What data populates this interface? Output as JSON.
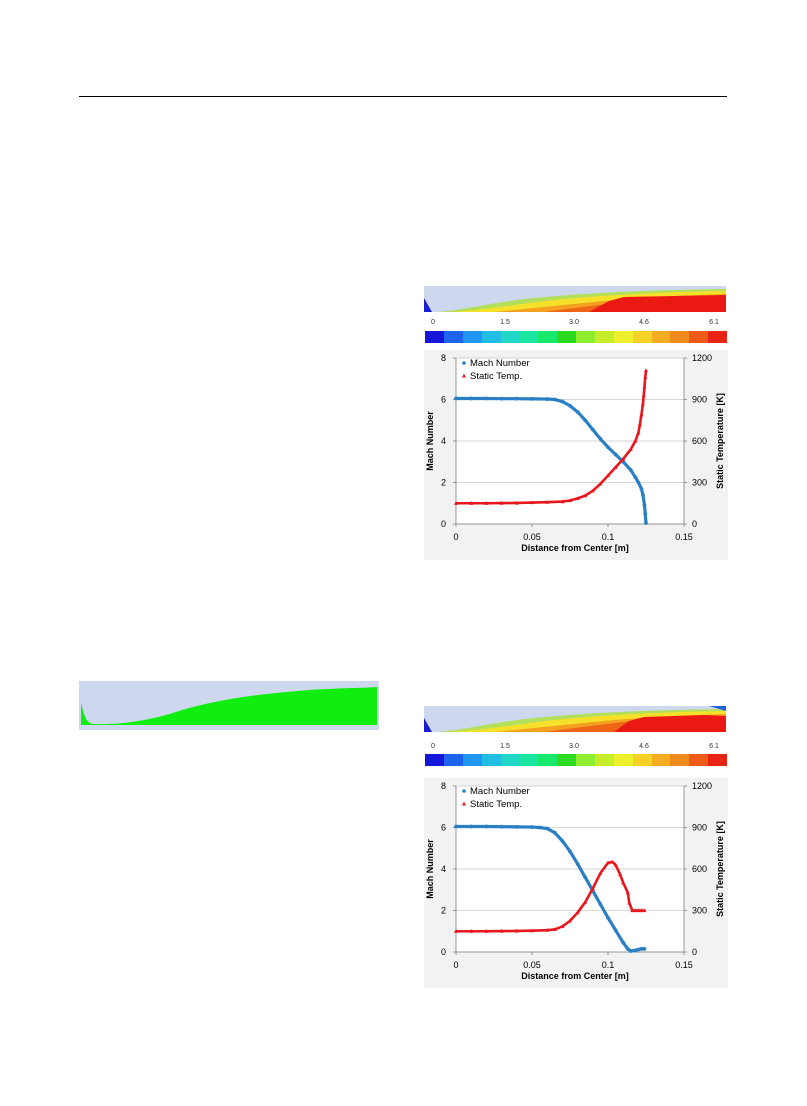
{
  "colors": {
    "mach": "#2a7fc4",
    "temp": "#e8161d",
    "panel_bg": "#cdd8ef",
    "green": "#10ee10",
    "grid": "#c8c8c8",
    "colormap": [
      "#1616d8",
      "#1d64ee",
      "#2196f3",
      "#22bde3",
      "#21d7c8",
      "#1ae6a0",
      "#19e96a",
      "#2cdb21",
      "#8ded2e",
      "#c6ed2a",
      "#eef02c",
      "#f5d225",
      "#f4ad20",
      "#f18a1c",
      "#ee5b18",
      "#ea2414"
    ]
  },
  "colorbar": {
    "ticks": [
      "0",
      "1.5",
      "3.0",
      "4.6",
      "6.1"
    ]
  },
  "chart_data": [
    {
      "type": "scatter",
      "title": "",
      "xlabel": "Distance from Center [m]",
      "ylabel": "Mach Number",
      "y2label": "Static Temperature [K]",
      "xlim": [
        0,
        0.15
      ],
      "ylim": [
        0,
        8
      ],
      "y2lim": [
        0,
        1200
      ],
      "xticks": [
        "0",
        "0.05",
        "0.1",
        "0.15"
      ],
      "yticks": [
        "0",
        "2",
        "4",
        "6",
        "8"
      ],
      "y2ticks": [
        "0",
        "300",
        "600",
        "900",
        "1200"
      ],
      "grid": "horizontal",
      "legend_position": "top-left",
      "series": [
        {
          "name": "Mach Number",
          "axis": "left",
          "marker": "circle",
          "x": [
            0,
            0.01,
            0.02,
            0.03,
            0.04,
            0.05,
            0.06,
            0.065,
            0.07,
            0.075,
            0.08,
            0.085,
            0.09,
            0.095,
            0.1,
            0.105,
            0.11,
            0.115,
            0.118,
            0.12,
            0.122,
            0.123,
            0.124,
            0.1245,
            0.125
          ],
          "y": [
            6.05,
            6.05,
            6.05,
            6.04,
            6.04,
            6.03,
            6.02,
            6.0,
            5.9,
            5.7,
            5.4,
            5.0,
            4.55,
            4.1,
            3.7,
            3.35,
            3.0,
            2.6,
            2.25,
            2.0,
            1.7,
            1.4,
            0.9,
            0.5,
            0.05
          ]
        },
        {
          "name": "Static Temp.",
          "axis": "right",
          "marker": "triangle",
          "x": [
            0,
            0.01,
            0.02,
            0.03,
            0.04,
            0.05,
            0.06,
            0.07,
            0.075,
            0.08,
            0.085,
            0.09,
            0.095,
            0.1,
            0.105,
            0.11,
            0.115,
            0.118,
            0.12,
            0.121,
            0.122,
            0.123,
            0.1235,
            0.124,
            0.1245,
            0.125
          ],
          "y": [
            150,
            150,
            150,
            151,
            152,
            155,
            158,
            162,
            170,
            185,
            205,
            240,
            290,
            350,
            410,
            470,
            540,
            600,
            660,
            720,
            790,
            870,
            930,
            990,
            1060,
            1110
          ]
        }
      ]
    },
    {
      "type": "scatter",
      "title": "",
      "xlabel": "Distance from Center [m]",
      "ylabel": "Mach Number",
      "y2label": "Static Temperature [K]",
      "xlim": [
        0,
        0.15
      ],
      "ylim": [
        0,
        8
      ],
      "y2lim": [
        0,
        1200
      ],
      "xticks": [
        "0",
        "0.05",
        "0.1",
        "0.15"
      ],
      "yticks": [
        "0",
        "2",
        "4",
        "6",
        "8"
      ],
      "y2ticks": [
        "0",
        "300",
        "600",
        "900",
        "1200"
      ],
      "grid": "horizontal",
      "legend_position": "top-left",
      "series": [
        {
          "name": "Mach Number",
          "axis": "left",
          "marker": "circle",
          "x": [
            0,
            0.01,
            0.02,
            0.03,
            0.04,
            0.05,
            0.055,
            0.06,
            0.065,
            0.07,
            0.075,
            0.08,
            0.085,
            0.09,
            0.095,
            0.1,
            0.105,
            0.11,
            0.113,
            0.115,
            0.118,
            0.12,
            0.122,
            0.124
          ],
          "y": [
            6.05,
            6.05,
            6.05,
            6.04,
            6.03,
            6.02,
            6.0,
            5.95,
            5.75,
            5.35,
            4.85,
            4.25,
            3.6,
            2.95,
            2.3,
            1.65,
            1.05,
            0.45,
            0.15,
            0.05,
            0.08,
            0.12,
            0.15,
            0.15
          ]
        },
        {
          "name": "Static Temp.",
          "axis": "right",
          "marker": "triangle",
          "x": [
            0,
            0.01,
            0.02,
            0.03,
            0.04,
            0.05,
            0.06,
            0.065,
            0.07,
            0.075,
            0.08,
            0.085,
            0.09,
            0.095,
            0.1,
            0.103,
            0.105,
            0.108,
            0.11,
            0.113,
            0.114,
            0.116,
            0.118,
            0.12,
            0.122,
            0.124
          ],
          "y": [
            150,
            150,
            150,
            151,
            152,
            154,
            158,
            163,
            185,
            225,
            285,
            360,
            460,
            570,
            645,
            650,
            630,
            560,
            500,
            430,
            355,
            300,
            300,
            300,
            300,
            300
          ]
        }
      ]
    }
  ]
}
